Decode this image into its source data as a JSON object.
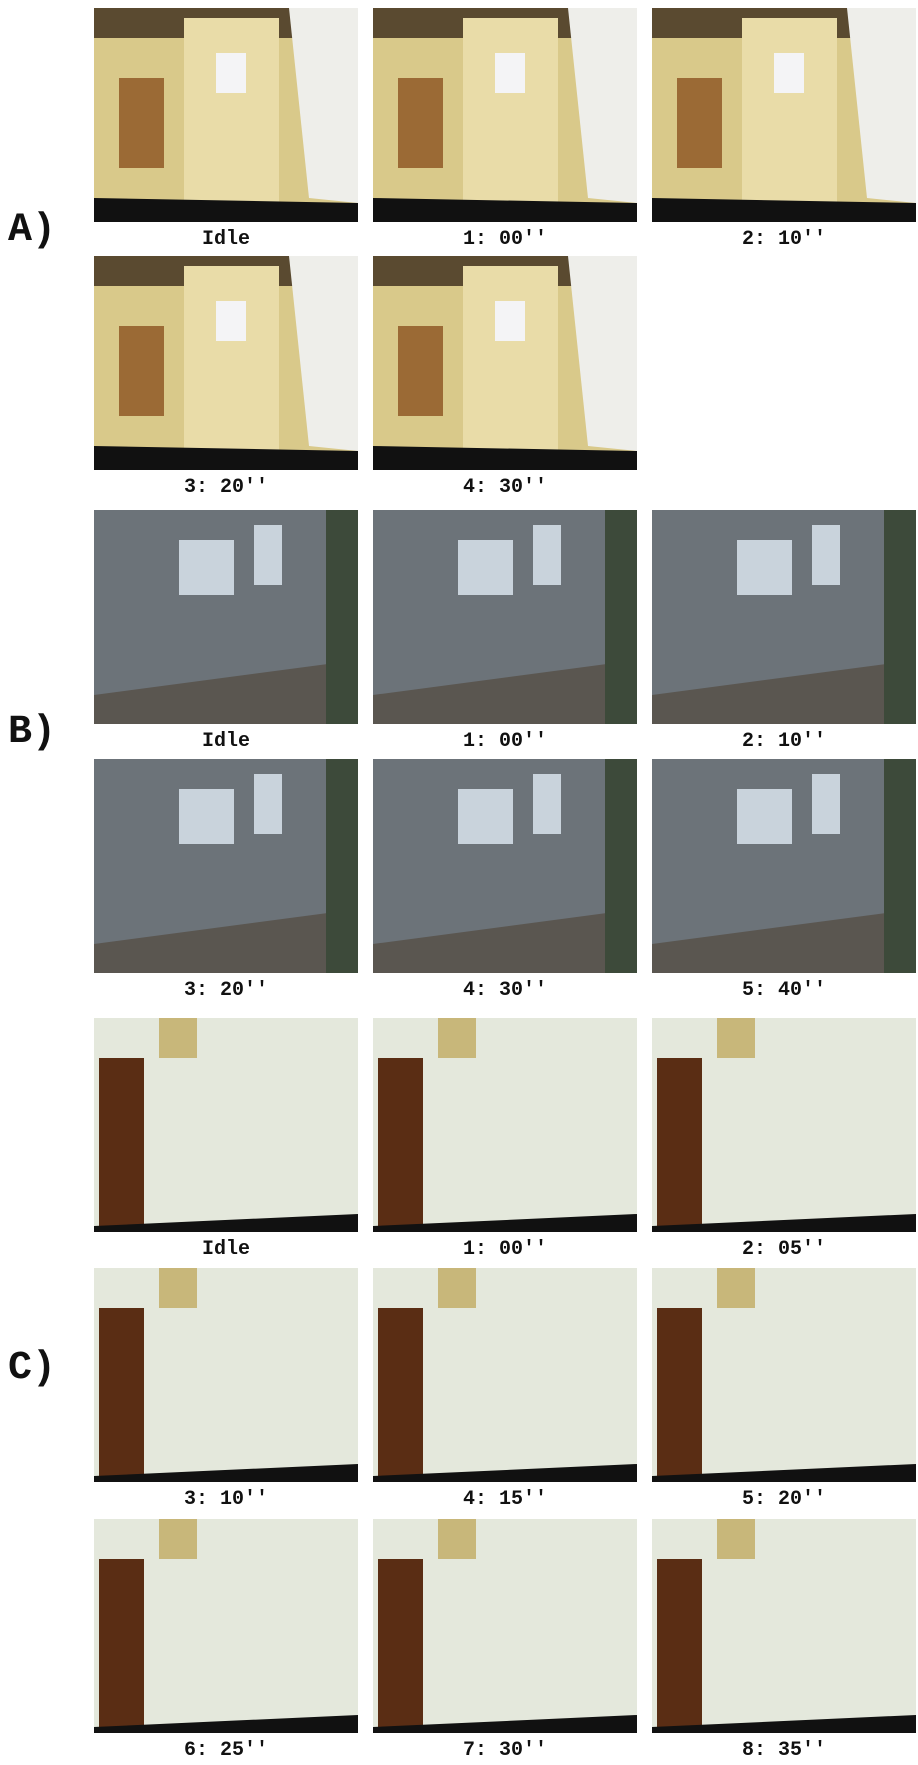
{
  "sections": [
    {
      "label": "A)",
      "rows": [
        [
          "Idle",
          "1: 00''",
          "2: 10''"
        ],
        [
          "3: 20''",
          "4: 30''"
        ]
      ]
    },
    {
      "label": "B)",
      "rows": [
        [
          "Idle",
          "1: 00''",
          "2: 10''"
        ],
        [
          "3: 20''",
          "4: 30''",
          "5: 40''"
        ]
      ]
    },
    {
      "label": "C)",
      "rows": [
        [
          "Idle",
          "1: 00''",
          "2: 05''"
        ],
        [
          "3: 10''",
          "4: 15''",
          "5: 20''"
        ],
        [
          "6: 25''",
          "7: 30''",
          "8: 35''"
        ]
      ]
    }
  ]
}
